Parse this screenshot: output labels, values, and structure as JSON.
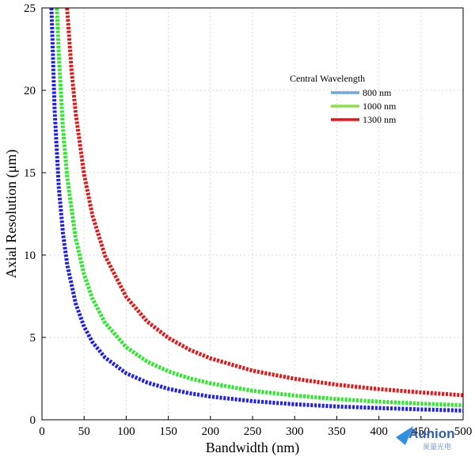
{
  "chart_data": {
    "type": "line",
    "xlabel": "Bandwidth (nm)",
    "ylabel": "Axial Resolution (μm)",
    "xlim": [
      0,
      500
    ],
    "ylim": [
      0,
      25
    ],
    "x_ticks": [
      "0",
      "50",
      "100",
      "150",
      "200",
      "250",
      "300",
      "350",
      "400",
      "450",
      "500"
    ],
    "y_ticks": [
      "0",
      "5",
      "10",
      "15",
      "20",
      "25"
    ],
    "grid": true,
    "legend": {
      "title": "Central Wavelength",
      "placement": "top-right"
    },
    "series": [
      {
        "name": "800 nm",
        "color": "#1a1aff",
        "legend_color": "#6fa8dc",
        "x": [
          11.3,
          15,
          20,
          25,
          30,
          40,
          50,
          60,
          75,
          100,
          125,
          150,
          175,
          200,
          250,
          300,
          350,
          400,
          450,
          500
        ],
        "y": [
          25.0,
          18.8,
          14.1,
          11.3,
          9.41,
          7.06,
          5.65,
          4.71,
          3.77,
          2.82,
          2.26,
          1.88,
          1.61,
          1.41,
          1.13,
          0.94,
          0.81,
          0.71,
          0.63,
          0.56
        ]
      },
      {
        "name": "1000 nm",
        "color": "#22ee22",
        "legend_color": "#8ee04a",
        "x": [
          17.7,
          20,
          25,
          30,
          40,
          50,
          60,
          75,
          100,
          125,
          150,
          175,
          200,
          250,
          300,
          350,
          400,
          450,
          500
        ],
        "y": [
          25.0,
          22.1,
          17.6,
          14.7,
          11.0,
          8.82,
          7.35,
          5.88,
          4.41,
          3.53,
          2.94,
          2.52,
          2.21,
          1.76,
          1.47,
          1.26,
          1.1,
          0.98,
          0.88
        ]
      },
      {
        "name": "1300 nm",
        "color": "#ee1111",
        "legend_color": "#ee1111",
        "x": [
          29.8,
          35,
          40,
          50,
          60,
          75,
          100,
          125,
          150,
          175,
          200,
          250,
          300,
          350,
          400,
          450,
          500
        ],
        "y": [
          25.0,
          21.3,
          18.6,
          14.9,
          12.4,
          9.94,
          7.46,
          5.96,
          4.97,
          4.26,
          3.73,
          2.98,
          2.49,
          2.13,
          1.86,
          1.66,
          1.49
        ]
      }
    ]
  },
  "watermark": {
    "text": "Aunion",
    "subtext": "昊量光电"
  }
}
